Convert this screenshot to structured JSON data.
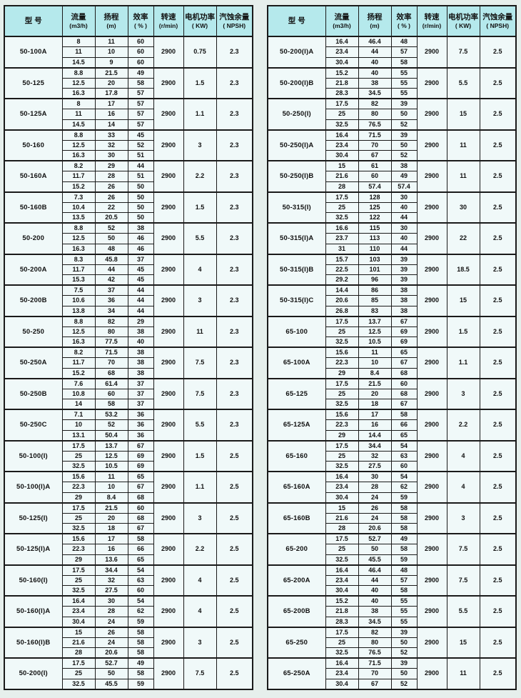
{
  "colors": {
    "page_bg": "#e6efec",
    "header_bg": "#b5e9ec",
    "cell_bg": "#f0f9f9",
    "border": "#1a1a1a"
  },
  "header": {
    "model": "型  号",
    "flow": {
      "line1": "流量",
      "line2": "(m3/h)"
    },
    "head": {
      "line1": "扬程",
      "line2": "(m)"
    },
    "efficiency": {
      "line1": "效率",
      "line2": "( % )"
    },
    "speed": {
      "line1": "转速",
      "line2": "(r/min)"
    },
    "power": {
      "line1": "电机功率",
      "line2": "( KW)"
    },
    "npsh": {
      "line1": "汽蚀余量",
      "line2": "( NPSH)"
    }
  },
  "tables": [
    {
      "groups": [
        {
          "model": "50-100A",
          "rows": [
            [
              "8",
              "11",
              "60"
            ],
            [
              "11",
              "10",
              "60"
            ],
            [
              "14.5",
              "9",
              "60"
            ]
          ],
          "speed": "2900",
          "power": "0.75",
          "npsh": "2.3"
        },
        {
          "model": "50-125",
          "rows": [
            [
              "8.8",
              "21.5",
              "49"
            ],
            [
              "12.5",
              "20",
              "58"
            ],
            [
              "16.3",
              "17.8",
              "57"
            ]
          ],
          "speed": "2900",
          "power": "1.5",
          "npsh": "2.3"
        },
        {
          "model": "50-125A",
          "rows": [
            [
              "8",
              "17",
              "57"
            ],
            [
              "11",
              "16",
              "57"
            ],
            [
              "14.5",
              "14",
              "57"
            ]
          ],
          "speed": "2900",
          "power": "1.1",
          "npsh": "2.3"
        },
        {
          "model": "50-160",
          "rows": [
            [
              "8.8",
              "33",
              "45"
            ],
            [
              "12.5",
              "32",
              "52"
            ],
            [
              "16.3",
              "30",
              "51"
            ]
          ],
          "speed": "2900",
          "power": "3",
          "npsh": "2.3"
        },
        {
          "model": "50-160A",
          "rows": [
            [
              "8.2",
              "29",
              "44"
            ],
            [
              "11.7",
              "28",
              "51"
            ],
            [
              "15.2",
              "26",
              "50"
            ]
          ],
          "speed": "2900",
          "power": "2.2",
          "npsh": "2.3"
        },
        {
          "model": "50-160B",
          "rows": [
            [
              "7.3",
              "26",
              "50"
            ],
            [
              "10.4",
              "22",
              "50"
            ],
            [
              "13.5",
              "20.5",
              "50"
            ]
          ],
          "speed": "2900",
          "power": "1.5",
          "npsh": "2.3"
        },
        {
          "model": "50-200",
          "rows": [
            [
              "8.8",
              "52",
              "38"
            ],
            [
              "12.5",
              "50",
              "46"
            ],
            [
              "16.3",
              "48",
              "46"
            ]
          ],
          "speed": "2900",
          "power": "5.5",
          "npsh": "2.3"
        },
        {
          "model": "50-200A",
          "rows": [
            [
              "8.3",
              "45.8",
              "37"
            ],
            [
              "11.7",
              "44",
              "45"
            ],
            [
              "15.3",
              "42",
              "45"
            ]
          ],
          "speed": "2900",
          "power": "4",
          "npsh": "2.3"
        },
        {
          "model": "50-200B",
          "rows": [
            [
              "7.5",
              "37",
              "44"
            ],
            [
              "10.6",
              "36",
              "44"
            ],
            [
              "13.8",
              "34",
              "44"
            ]
          ],
          "speed": "2900",
          "power": "3",
          "npsh": "2.3"
        },
        {
          "model": "50-250",
          "rows": [
            [
              "8.8",
              "82",
              "29"
            ],
            [
              "12.5",
              "80",
              "38"
            ],
            [
              "16.3",
              "77.5",
              "40"
            ]
          ],
          "speed": "2900",
          "power": "11",
          "npsh": "2.3"
        },
        {
          "model": "50-250A",
          "rows": [
            [
              "8.2",
              "71.5",
              "38"
            ],
            [
              "11.7",
              "70",
              "38"
            ],
            [
              "15.2",
              "68",
              "38"
            ]
          ],
          "speed": "2900",
          "power": "7.5",
          "npsh": "2.3"
        },
        {
          "model": "50-250B",
          "rows": [
            [
              "7.6",
              "61.4",
              "37"
            ],
            [
              "10.8",
              "60",
              "37"
            ],
            [
              "14",
              "58",
              "37"
            ]
          ],
          "speed": "2900",
          "power": "7.5",
          "npsh": "2.3"
        },
        {
          "model": "50-250C",
          "rows": [
            [
              "7.1",
              "53.2",
              "36"
            ],
            [
              "10",
              "52",
              "36"
            ],
            [
              "13.1",
              "50.4",
              "36"
            ]
          ],
          "speed": "2900",
          "power": "5.5",
          "npsh": "2.3"
        },
        {
          "model": "50-100(I)",
          "rows": [
            [
              "17.5",
              "13.7",
              "67"
            ],
            [
              "25",
              "12.5",
              "69"
            ],
            [
              "32.5",
              "10.5",
              "69"
            ]
          ],
          "speed": "2900",
          "power": "1.5",
          "npsh": "2.5"
        },
        {
          "model": "50-100(I)A",
          "rows": [
            [
              "15.6",
              "11",
              "65"
            ],
            [
              "22.3",
              "10",
              "67"
            ],
            [
              "29",
              "8.4",
              "68"
            ]
          ],
          "speed": "2900",
          "power": "1.1",
          "npsh": "2.5"
        },
        {
          "model": "50-125(I)",
          "rows": [
            [
              "17.5",
              "21.5",
              "60"
            ],
            [
              "25",
              "20",
              "68"
            ],
            [
              "32.5",
              "18",
              "67"
            ]
          ],
          "speed": "2900",
          "power": "3",
          "npsh": "2.5"
        },
        {
          "model": "50-125(I)A",
          "rows": [
            [
              "15.6",
              "17",
              "58"
            ],
            [
              "22.3",
              "16",
              "66"
            ],
            [
              "29",
              "13.6",
              "65"
            ]
          ],
          "speed": "2900",
          "power": "2.2",
          "npsh": "2.5"
        },
        {
          "model": "50-160(I)",
          "rows": [
            [
              "17.5",
              "34.4",
              "54"
            ],
            [
              "25",
              "32",
              "63"
            ],
            [
              "32.5",
              "27.5",
              "60"
            ]
          ],
          "speed": "2900",
          "power": "4",
          "npsh": "2.5"
        },
        {
          "model": "50-160(I)A",
          "rows": [
            [
              "16.4",
              "30",
              "54"
            ],
            [
              "23.4",
              "28",
              "62"
            ],
            [
              "30.4",
              "24",
              "59"
            ]
          ],
          "speed": "2900",
          "power": "4",
          "npsh": "2.5"
        },
        {
          "model": "50-160(I)B",
          "rows": [
            [
              "15",
              "26",
              "58"
            ],
            [
              "21.6",
              "24",
              "58"
            ],
            [
              "28",
              "20.6",
              "58"
            ]
          ],
          "speed": "2900",
          "power": "3",
          "npsh": "2.5"
        },
        {
          "model": "50-200(I)",
          "rows": [
            [
              "17.5",
              "52.7",
              "49"
            ],
            [
              "25",
              "50",
              "58"
            ],
            [
              "32.5",
              "45.5",
              "59"
            ]
          ],
          "speed": "2900",
          "power": "7.5",
          "npsh": "2.5"
        }
      ]
    },
    {
      "groups": [
        {
          "model": "50-200(I)A",
          "rows": [
            [
              "16.4",
              "46.4",
              "48"
            ],
            [
              "23.4",
              "44",
              "57"
            ],
            [
              "30.4",
              "40",
              "58"
            ]
          ],
          "speed": "2900",
          "power": "7.5",
          "npsh": "2.5"
        },
        {
          "model": "50-200(I)B",
          "rows": [
            [
              "15.2",
              "40",
              "55"
            ],
            [
              "21.8",
              "38",
              "55"
            ],
            [
              "28.3",
              "34.5",
              "55"
            ]
          ],
          "speed": "2900",
          "power": "5.5",
          "npsh": "2.5"
        },
        {
          "model": "50-250(I)",
          "rows": [
            [
              "17.5",
              "82",
              "39"
            ],
            [
              "25",
              "80",
              "50"
            ],
            [
              "32.5",
              "76.5",
              "52"
            ]
          ],
          "speed": "2900",
          "power": "15",
          "npsh": "2.5"
        },
        {
          "model": "50-250(I)A",
          "rows": [
            [
              "16.4",
              "71.5",
              "39"
            ],
            [
              "23.4",
              "70",
              "50"
            ],
            [
              "30.4",
              "67",
              "52"
            ]
          ],
          "speed": "2900",
          "power": "11",
          "npsh": "2.5"
        },
        {
          "model": "50-250(I)B",
          "rows": [
            [
              "15",
              "61",
              "38"
            ],
            [
              "21.6",
              "60",
              "49"
            ],
            [
              "28",
              "57.4",
              "57.4"
            ]
          ],
          "speed": "2900",
          "power": "11",
          "npsh": "2.5"
        },
        {
          "model": "50-315(I)",
          "rows": [
            [
              "17.5",
              "128",
              "30"
            ],
            [
              "25",
              "125",
              "40"
            ],
            [
              "32.5",
              "122",
              "44"
            ]
          ],
          "speed": "2900",
          "power": "30",
          "npsh": "2.5"
        },
        {
          "model": "50-315(I)A",
          "rows": [
            [
              "16.6",
              "115",
              "30"
            ],
            [
              "23.7",
              "113",
              "40"
            ],
            [
              "31",
              "110",
              "44"
            ]
          ],
          "speed": "2900",
          "power": "22",
          "npsh": "2.5"
        },
        {
          "model": "50-315(I)B",
          "rows": [
            [
              "15.7",
              "103",
              "39"
            ],
            [
              "22.5",
              "101",
              "39"
            ],
            [
              "29.2",
              "96",
              "39"
            ]
          ],
          "speed": "2900",
          "power": "18.5",
          "npsh": "2.5"
        },
        {
          "model": "50-315(I)C",
          "rows": [
            [
              "14.4",
              "86",
              "38"
            ],
            [
              "20.6",
              "85",
              "38"
            ],
            [
              "26.8",
              "83",
              "38"
            ]
          ],
          "speed": "2900",
          "power": "15",
          "npsh": "2.5"
        },
        {
          "model": "65-100",
          "rows": [
            [
              "17.5",
              "13.7",
              "67"
            ],
            [
              "25",
              "12.5",
              "69"
            ],
            [
              "32.5",
              "10.5",
              "69"
            ]
          ],
          "speed": "2900",
          "power": "1.5",
          "npsh": "2.5"
        },
        {
          "model": "65-100A",
          "rows": [
            [
              "15.6",
              "11",
              "65"
            ],
            [
              "22.3",
              "10",
              "67"
            ],
            [
              "29",
              "8.4",
              "68"
            ]
          ],
          "speed": "2900",
          "power": "1.1",
          "npsh": "2.5"
        },
        {
          "model": "65-125",
          "rows": [
            [
              "17.5",
              "21.5",
              "60"
            ],
            [
              "25",
              "20",
              "68"
            ],
            [
              "32.5",
              "18",
              "67"
            ]
          ],
          "speed": "2900",
          "power": "3",
          "npsh": "2.5"
        },
        {
          "model": "65-125A",
          "rows": [
            [
              "15.6",
              "17",
              "58"
            ],
            [
              "22.3",
              "16",
              "66"
            ],
            [
              "29",
              "14.4",
              "65"
            ]
          ],
          "speed": "2900",
          "power": "2.2",
          "npsh": "2.5"
        },
        {
          "model": "65-160",
          "rows": [
            [
              "17.5",
              "34.4",
              "54"
            ],
            [
              "25",
              "32",
              "63"
            ],
            [
              "32.5",
              "27.5",
              "60"
            ]
          ],
          "speed": "2900",
          "power": "4",
          "npsh": "2.5"
        },
        {
          "model": "65-160A",
          "rows": [
            [
              "16.4",
              "30",
              "54"
            ],
            [
              "23.4",
              "28",
              "62"
            ],
            [
              "30.4",
              "24",
              "59"
            ]
          ],
          "speed": "2900",
          "power": "4",
          "npsh": "2.5"
        },
        {
          "model": "65-160B",
          "rows": [
            [
              "15",
              "26",
              "58"
            ],
            [
              "21.6",
              "24",
              "58"
            ],
            [
              "28",
              "20.6",
              "58"
            ]
          ],
          "speed": "2900",
          "power": "3",
          "npsh": "2.5"
        },
        {
          "model": "65-200",
          "rows": [
            [
              "17.5",
              "52.7",
              "49"
            ],
            [
              "25",
              "50",
              "58"
            ],
            [
              "32.5",
              "45.5",
              "59"
            ]
          ],
          "speed": "2900",
          "power": "7.5",
          "npsh": "2.5"
        },
        {
          "model": "65-200A",
          "rows": [
            [
              "16.4",
              "46.4",
              "48"
            ],
            [
              "23.4",
              "44",
              "57"
            ],
            [
              "30.4",
              "40",
              "58"
            ]
          ],
          "speed": "2900",
          "power": "7.5",
          "npsh": "2.5"
        },
        {
          "model": "65-200B",
          "rows": [
            [
              "15.2",
              "40",
              "55"
            ],
            [
              "21.8",
              "38",
              "55"
            ],
            [
              "28.3",
              "34.5",
              "55"
            ]
          ],
          "speed": "2900",
          "power": "5.5",
          "npsh": "2.5"
        },
        {
          "model": "65-250",
          "rows": [
            [
              "17.5",
              "82",
              "39"
            ],
            [
              "25",
              "80",
              "50"
            ],
            [
              "32.5",
              "76.5",
              "52"
            ]
          ],
          "speed": "2900",
          "power": "15",
          "npsh": "2.5"
        },
        {
          "model": "65-250A",
          "rows": [
            [
              "16.4",
              "71.5",
              "39"
            ],
            [
              "23.4",
              "70",
              "50"
            ],
            [
              "30.4",
              "67",
              "52"
            ]
          ],
          "speed": "2900",
          "power": "11",
          "npsh": "2.5"
        }
      ]
    }
  ]
}
